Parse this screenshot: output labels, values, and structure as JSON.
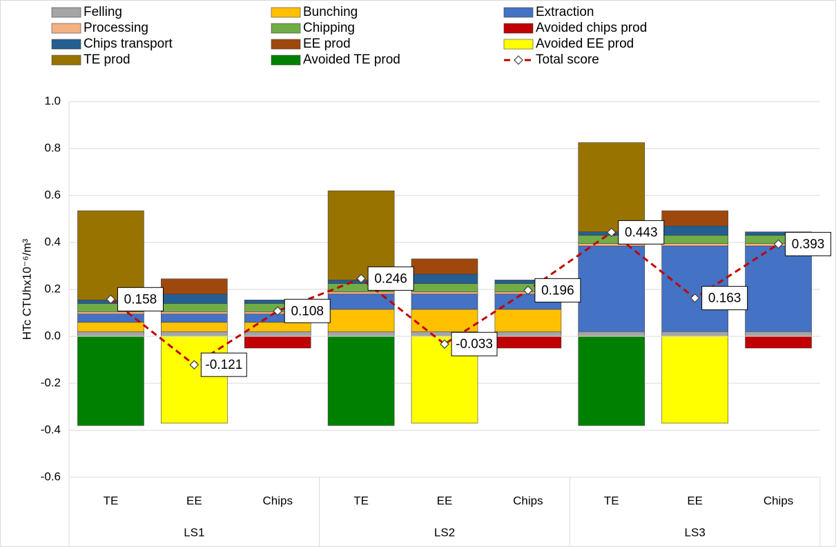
{
  "chart_data": {
    "type": "bar",
    "ylabel": "HTc CTUhx10⁻⁶/m³",
    "categories": [
      "TE",
      "EE",
      "Chips",
      "TE",
      "EE",
      "Chips",
      "TE",
      "EE",
      "Chips"
    ],
    "groups": [
      "LS1",
      "LS2",
      "LS3"
    ],
    "ylim": [
      -0.6,
      1.0
    ],
    "yticks": [
      {
        "value": 1.0,
        "label": "1.0"
      },
      0.8,
      0.6,
      0.4,
      0.2,
      {
        "value": 0,
        "label": "0.0"
      },
      -0.2,
      -0.4,
      -0.6
    ],
    "grid": true,
    "legend": "top",
    "series": [
      {
        "name": "Felling",
        "color": "#a5a5a5",
        "values": [
          0.02,
          0.02,
          0.02,
          0.02,
          0.02,
          0.02,
          0.02,
          0.02,
          0.02
        ]
      },
      {
        "name": "Bunching",
        "color": "#ffc000",
        "values": [
          0.04,
          0.04,
          0.04,
          0.095,
          0.095,
          0.095,
          0,
          0,
          0
        ]
      },
      {
        "name": "Extraction",
        "color": "#4472c4",
        "values": [
          0.035,
          0.035,
          0.035,
          0.065,
          0.065,
          0.065,
          0.365,
          0.365,
          0.365
        ]
      },
      {
        "name": "Processing",
        "color": "#f4b183",
        "values": [
          0.01,
          0.01,
          0.01,
          0.01,
          0.01,
          0.01,
          0.01,
          0.01,
          0.01
        ]
      },
      {
        "name": "Chipping",
        "color": "#70ad47",
        "values": [
          0.035,
          0.035,
          0.035,
          0.035,
          0.035,
          0.035,
          0.035,
          0.035,
          0.035
        ]
      },
      {
        "name": "Avoided chips prod",
        "color": "#c00000",
        "values": [
          0,
          0,
          -0.05,
          0,
          0,
          -0.05,
          0,
          0,
          -0.05
        ]
      },
      {
        "name": "Chips transport",
        "color": "#255e91",
        "values": [
          0.015,
          0.04,
          0.015,
          0.015,
          0.04,
          0.015,
          0.015,
          0.04,
          0.015
        ]
      },
      {
        "name": "EE prod",
        "color": "#9e480e",
        "values": [
          0,
          0.065,
          0,
          0,
          0.065,
          0,
          0,
          0.065,
          0
        ]
      },
      {
        "name": "Avoided EE prod",
        "color": "#ffff00",
        "values": [
          0,
          -0.37,
          0,
          0,
          -0.37,
          0,
          0,
          -0.37,
          0
        ]
      },
      {
        "name": "TE prod",
        "color": "#997300",
        "values": [
          0.38,
          0,
          0,
          0.38,
          0,
          0,
          0.38,
          0,
          0
        ]
      },
      {
        "name": "Avoided TE prod",
        "color": "#008000",
        "values": [
          -0.38,
          0,
          0,
          -0.38,
          0,
          0,
          -0.38,
          0,
          0
        ]
      },
      {
        "name": "Total score",
        "color": "#c00000",
        "type": "line",
        "values": [
          0.158,
          -0.121,
          0.108,
          0.246,
          -0.033,
          0.196,
          0.443,
          0.163,
          0.393
        ]
      }
    ]
  }
}
